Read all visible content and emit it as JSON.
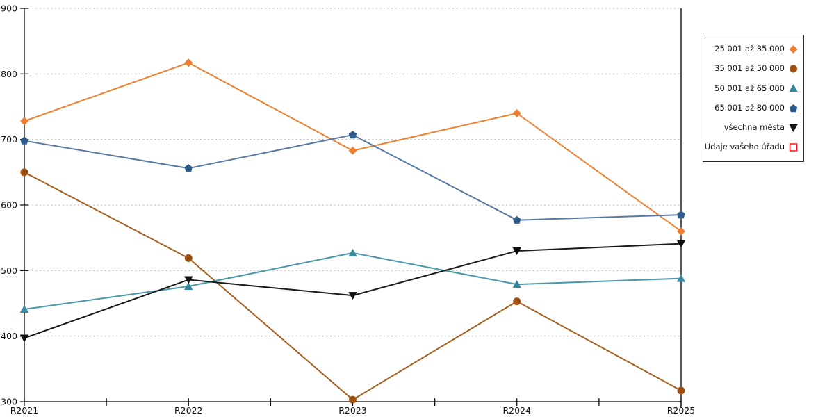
{
  "chart_data": {
    "type": "line",
    "title": "",
    "xlabel": "",
    "ylabel": "",
    "categories": [
      "R2021",
      "R2022",
      "R2023",
      "R2024",
      "R2025"
    ],
    "series": [
      {
        "name": "25 001 až 35 000",
        "marker": "diamond",
        "marker_color": "#ED7D31",
        "line_color": "#F07F2D",
        "values": [
          728,
          817,
          683,
          740,
          560
        ]
      },
      {
        "name": "35 001 až 50 000",
        "marker": "circle",
        "marker_color": "#9C4F0E",
        "line_color": "#A85E1E",
        "values": [
          650,
          519,
          303,
          453,
          317
        ]
      },
      {
        "name": "50 001 až 65 000",
        "marker": "triangle-up",
        "marker_color": "#35879E",
        "line_color": "#4A97A8",
        "values": [
          441,
          476,
          527,
          479,
          488
        ]
      },
      {
        "name": "65 001 až 80 000",
        "marker": "pentagon",
        "marker_color": "#2E5C8A",
        "line_color": "#5878A4",
        "values": [
          698,
          656,
          707,
          577,
          585
        ]
      },
      {
        "name": "všechna města",
        "marker": "triangle-down",
        "marker_color": "#111111",
        "line_color": "#1A1A1A",
        "values": [
          397,
          486,
          462,
          530,
          541
        ]
      },
      {
        "name": "Údaje vašeho úřadu",
        "marker": "square-open",
        "marker_color": "#FF0000",
        "line_color": "#FF0000",
        "values": []
      }
    ],
    "ylim": [
      300,
      900
    ],
    "ytick_step": 100,
    "ytick_labels": [
      "300",
      "400",
      "500",
      "600",
      "700",
      "800",
      "900"
    ],
    "grid": "horizontal-dotted",
    "grid_color": "#B3B3B3",
    "axis_color": "#000000",
    "text_color": "#111111",
    "legend_position": "right"
  }
}
